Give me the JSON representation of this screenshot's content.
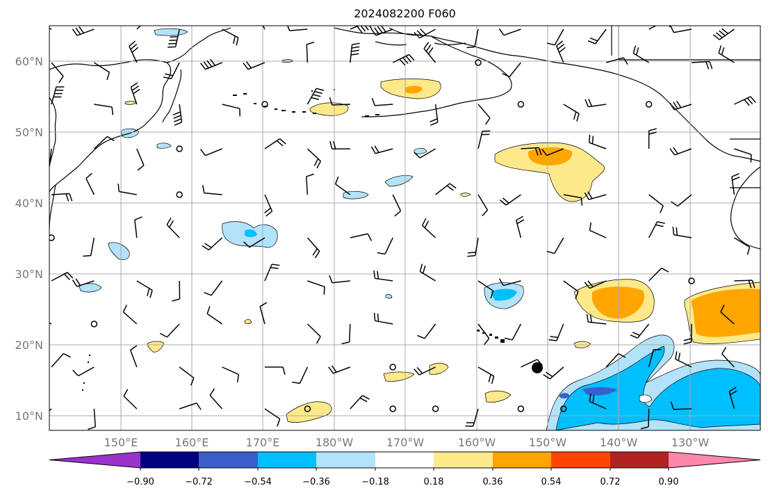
{
  "title": "2024082200 F060",
  "map": {
    "lat_labels": [
      "60°N",
      "50°N",
      "40°N",
      "30°N",
      "20°N",
      "10°N"
    ],
    "lon_labels": [
      "150°E",
      "160°E",
      "170°E",
      "180°W",
      "170°W",
      "160°W",
      "150°W",
      "140°W",
      "130°W"
    ]
  },
  "colorbar": {
    "ticks": [
      "−0.90",
      "−0.72",
      "−0.54",
      "−0.36",
      "−0.18",
      "0.18",
      "0.36",
      "0.54",
      "0.72",
      "0.90"
    ],
    "colors": [
      "#9933cc",
      "#000080",
      "#3a5fcd",
      "#00bfff",
      "#b2e3fa",
      "#ffffff",
      "#fde98a",
      "#ffa500",
      "#ff4500",
      "#b22222",
      "#ff88aa"
    ]
  },
  "colors": {
    "coast": "#000000",
    "grid": "#aaaaaa",
    "axis_label": "#777777"
  }
}
